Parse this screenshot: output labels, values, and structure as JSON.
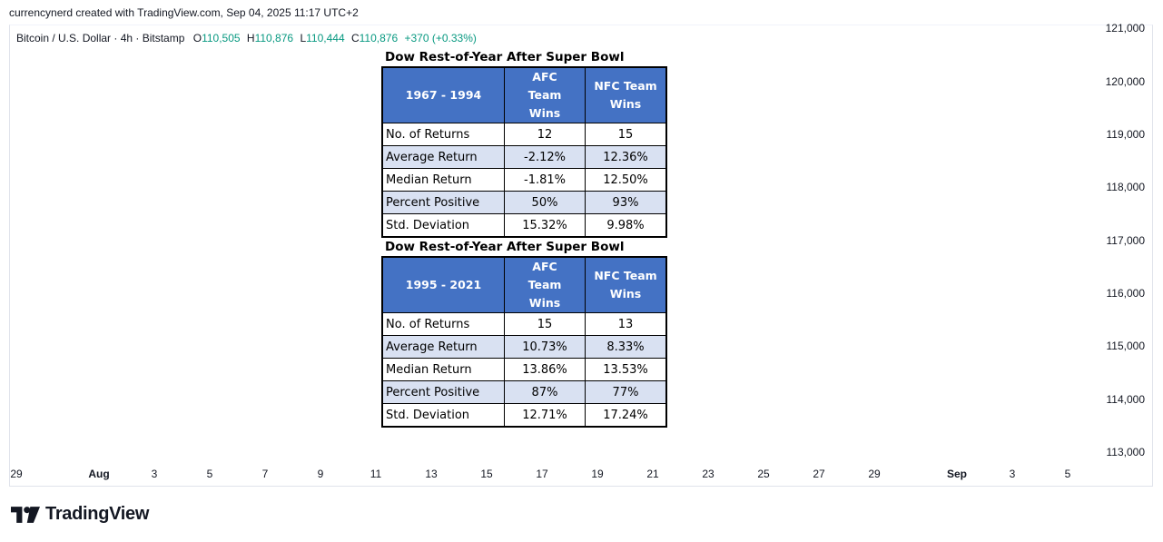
{
  "header": {
    "attribution": "currencynerd created with TradingView.com, Sep 04, 2025 11:17 UTC+2"
  },
  "legend": {
    "symbol": "Bitcoin / U.S. Dollar · 4h · Bitstamp",
    "o_label": "O",
    "o_value": "110,505",
    "h_label": "H",
    "h_value": "110,876",
    "l_label": "L",
    "l_value": "110,444",
    "c_label": "C",
    "c_value": "110,876",
    "change": "+370 (+0.33%)"
  },
  "y_axis": {
    "ticks": [
      "121,000",
      "120,000",
      "119,000",
      "118,000",
      "117,000",
      "116,000",
      "115,000",
      "114,000",
      "113,000"
    ]
  },
  "x_axis": {
    "ticks": [
      "29",
      "Aug",
      "3",
      "5",
      "7",
      "9",
      "11",
      "13",
      "15",
      "17",
      "19",
      "21",
      "23",
      "25",
      "27",
      "29",
      "Sep",
      "3",
      "5"
    ]
  },
  "tables": [
    {
      "title": "Dow Rest-of-Year After Super Bowl",
      "period": "1967 - 1994",
      "col1": "AFC Team Wins",
      "col2": "NFC Team Wins",
      "rows": [
        {
          "label": "No. of Returns",
          "afc": "12",
          "nfc": "15"
        },
        {
          "label": "Average Return",
          "afc": "-2.12%",
          "nfc": "12.36%"
        },
        {
          "label": "Median Return",
          "afc": "-1.81%",
          "nfc": "12.50%"
        },
        {
          "label": "Percent Positive",
          "afc": "50%",
          "nfc": "93%"
        },
        {
          "label": "Std. Deviation",
          "afc": "15.32%",
          "nfc": "9.98%"
        }
      ]
    },
    {
      "title": "Dow Rest-of-Year After Super Bowl",
      "period": "1995 - 2021",
      "col1": "AFC Team Wins",
      "col2": "NFC Team Wins",
      "rows": [
        {
          "label": "No. of Returns",
          "afc": "15",
          "nfc": "13"
        },
        {
          "label": "Average Return",
          "afc": "10.73%",
          "nfc": "8.33%"
        },
        {
          "label": "Median Return",
          "afc": "13.86%",
          "nfc": "13.53%"
        },
        {
          "label": "Percent Positive",
          "afc": "87%",
          "nfc": "77%"
        },
        {
          "label": "Std. Deviation",
          "afc": "12.71%",
          "nfc": "17.24%"
        }
      ]
    }
  ],
  "branding": {
    "wordmark": "TradingView"
  },
  "colors": {
    "table_header": "#4472c4",
    "alt_row": "#d9e1f2",
    "ohlc_value": "#089981"
  }
}
